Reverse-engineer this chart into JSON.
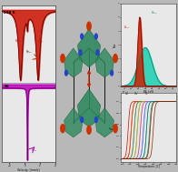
{
  "bg_color": "#b8b8b8",
  "left_panel_bg": "#e8e8e8",
  "right_top_bg": "#e8e8e8",
  "right_bot_bg": "#e8e8e8",
  "title_left_top": "298 K",
  "title_left_bot": "5K",
  "xlabel_left": "Velocity, [mm/s]",
  "ylabel_left": "Transmittance, [a.u]",
  "xlabel_right_top": "BE, [eV]",
  "ylabel_right_top": "Nbs",
  "xlabel_right_bot": "Temperature, [C]",
  "mossbauer_top_hs_color": "#cc1100",
  "mossbauer_top_hs2_color": "#ff3300",
  "mossbauer_top_ls_color": "#880000",
  "mossbauer_bot_color": "#bb00bb",
  "nis_teal_color": "#00ccaa",
  "nis_red_color": "#cc2200",
  "octahedron_color": "#2d8a5e",
  "octahedron_edge": "#1a5c3a",
  "rod_color": "#111111",
  "atom_red": "#cc3300",
  "atom_blue": "#2244cc",
  "arrow_color": "#cc2200",
  "suscept_colors": [
    "#cc0000",
    "#ff5500",
    "#00aa88",
    "#ffaa00",
    "#aa44cc",
    "#4488ff",
    "#008844",
    "#882200"
  ],
  "t_halfs_up": [
    228,
    238,
    248,
    258,
    268,
    278,
    288,
    300
  ],
  "t_halfs_dn": [
    218,
    228,
    238,
    248,
    258,
    268,
    278,
    290
  ]
}
